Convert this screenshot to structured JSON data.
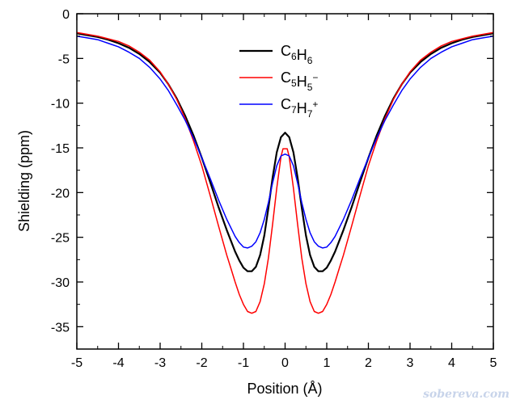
{
  "chart_data": {
    "type": "line",
    "xlabel": "Position (Å)",
    "ylabel": "Shielding (ppm)",
    "xlim": [
      -5,
      5
    ],
    "ylim": [
      -37.5,
      0
    ],
    "x_ticks": [
      -5,
      -4,
      -3,
      -2,
      -1,
      0,
      1,
      2,
      3,
      4,
      5
    ],
    "y_ticks": [
      0,
      -5,
      -10,
      -15,
      -20,
      -25,
      -30,
      -35
    ],
    "grid": false,
    "legend_position": "top-center",
    "series": [
      {
        "name": "C6H6",
        "legend_parts": [
          [
            "C",
            ""
          ],
          [
            "6",
            "sub"
          ],
          [
            "H",
            ""
          ],
          [
            "6",
            "sub"
          ]
        ],
        "color": "#000000",
        "x": [
          0,
          0.1,
          0.2,
          0.3,
          0.4,
          0.5,
          0.6,
          0.7,
          0.8,
          0.9,
          1.0,
          1.1,
          1.2,
          1.4,
          1.6,
          1.8,
          2.0,
          2.2,
          2.4,
          2.6,
          2.8,
          3.0,
          3.25,
          3.5,
          3.75,
          4.0,
          4.25,
          4.5,
          4.75,
          5.0
        ],
        "y": [
          -13.3,
          -13.8,
          -15.5,
          -18.3,
          -21.7,
          -24.8,
          -27.0,
          -28.3,
          -28.8,
          -28.8,
          -28.4,
          -27.6,
          -26.6,
          -24.2,
          -21.6,
          -18.8,
          -16.1,
          -13.6,
          -11.4,
          -9.5,
          -7.9,
          -6.6,
          -5.4,
          -4.5,
          -3.8,
          -3.3,
          -2.9,
          -2.6,
          -2.4,
          -2.2
        ]
      },
      {
        "name": "C5H5−",
        "legend_parts": [
          [
            "C",
            ""
          ],
          [
            "5",
            "sub"
          ],
          [
            "H",
            ""
          ],
          [
            "5",
            "sub"
          ],
          [
            "−",
            "sup"
          ]
        ],
        "color": "#ff0000",
        "x": [
          0,
          0.05,
          0.1,
          0.2,
          0.3,
          0.4,
          0.5,
          0.6,
          0.7,
          0.8,
          0.9,
          1.0,
          1.1,
          1.2,
          1.3,
          1.4,
          1.6,
          1.8,
          2.0,
          2.2,
          2.4,
          2.6,
          2.8,
          3.0,
          3.25,
          3.5,
          3.75,
          4.0,
          4.25,
          4.5,
          4.75,
          5.0
        ],
        "y": [
          -15.1,
          -15.1,
          -16.0,
          -19.5,
          -23.5,
          -27.3,
          -30.2,
          -32.2,
          -33.3,
          -33.5,
          -33.3,
          -32.5,
          -31.4,
          -30.0,
          -28.5,
          -27.0,
          -23.7,
          -20.3,
          -17.0,
          -14.2,
          -11.7,
          -9.6,
          -7.9,
          -6.5,
          -5.2,
          -4.3,
          -3.6,
          -3.1,
          -2.8,
          -2.5,
          -2.3,
          -2.1
        ]
      },
      {
        "name": "C7H7+",
        "legend_parts": [
          [
            "C",
            ""
          ],
          [
            "7",
            "sub"
          ],
          [
            "H",
            ""
          ],
          [
            "7",
            "sub"
          ],
          [
            "+",
            "sup"
          ]
        ],
        "color": "#0000ff",
        "x": [
          0,
          0.1,
          0.2,
          0.3,
          0.4,
          0.5,
          0.6,
          0.7,
          0.8,
          0.9,
          1.0,
          1.1,
          1.2,
          1.4,
          1.6,
          1.8,
          2.0,
          2.2,
          2.4,
          2.6,
          2.8,
          3.0,
          3.25,
          3.5,
          3.75,
          4.0,
          4.25,
          4.5,
          4.75,
          5.0
        ],
        "y": [
          -15.7,
          -15.9,
          -17.0,
          -18.9,
          -21.1,
          -23.0,
          -24.5,
          -25.5,
          -26.0,
          -26.2,
          -26.1,
          -25.6,
          -24.9,
          -23.0,
          -20.8,
          -18.4,
          -16.1,
          -13.9,
          -11.9,
          -10.2,
          -8.6,
          -7.3,
          -6.0,
          -5.0,
          -4.3,
          -3.7,
          -3.3,
          -2.9,
          -2.7,
          -2.5
        ]
      }
    ]
  },
  "watermark": "sobereva.com"
}
